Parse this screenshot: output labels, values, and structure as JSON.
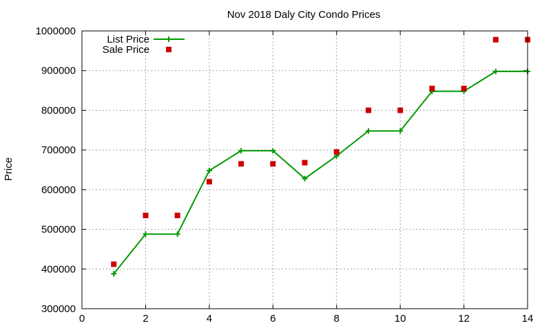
{
  "chart_data": {
    "type": "line",
    "title": "Nov 2018 Daly City Condo Prices",
    "xlabel": "",
    "ylabel": "Price",
    "xlim": [
      0,
      14
    ],
    "ylim": [
      300000,
      1000000
    ],
    "xticks": [
      0,
      2,
      4,
      6,
      8,
      10,
      12,
      14
    ],
    "yticks": [
      300000,
      400000,
      500000,
      600000,
      700000,
      800000,
      900000,
      1000000
    ],
    "grid": true,
    "legend_position": "top-left",
    "series": [
      {
        "name": "List Price",
        "style": "line-with-plus-markers",
        "color": "#009900",
        "x": [
          1,
          2,
          3,
          4,
          5,
          6,
          7,
          8,
          9,
          10,
          11,
          12,
          13,
          14
        ],
        "values": [
          388000,
          488000,
          488000,
          648000,
          698000,
          698000,
          628000,
          685000,
          748000,
          748000,
          848000,
          848000,
          898000,
          898000
        ]
      },
      {
        "name": "Sale Price",
        "style": "square-markers",
        "color": "#cc0000",
        "x": [
          1,
          2,
          3,
          4,
          5,
          6,
          7,
          8,
          9,
          10,
          11,
          12,
          13,
          14
        ],
        "values": [
          412000,
          535000,
          535000,
          620000,
          665000,
          665000,
          668000,
          695000,
          800000,
          800000,
          855000,
          855000,
          978000,
          978000
        ]
      }
    ]
  }
}
